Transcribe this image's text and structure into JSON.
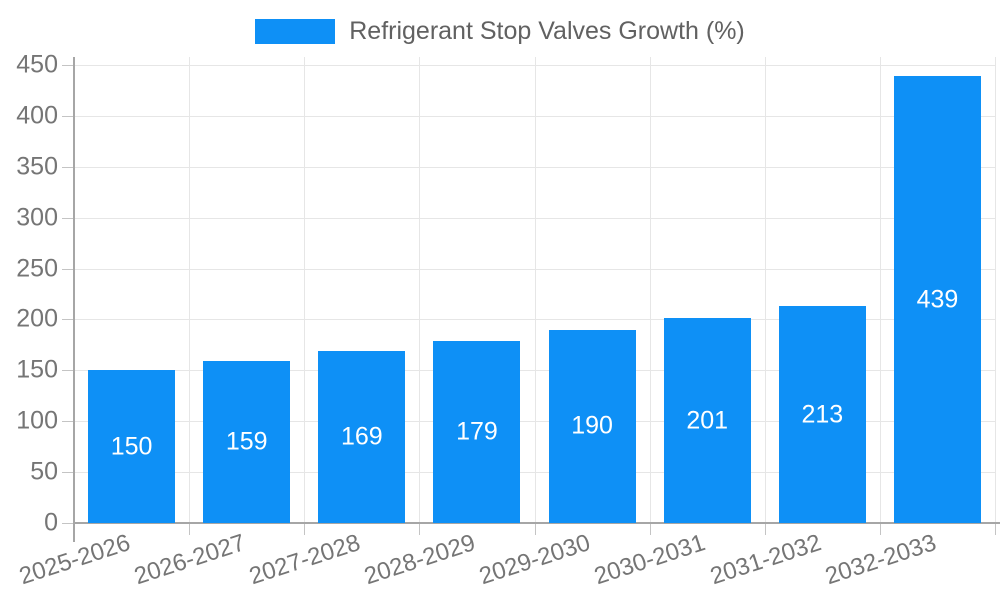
{
  "chart_data": {
    "type": "bar",
    "title": "Refrigerant Stop Valves Growth (%)",
    "categories": [
      "2025-2026",
      "2026-2027",
      "2027-2028",
      "2028-2029",
      "2029-2030",
      "2030-2031",
      "2031-2032",
      "2032-2033"
    ],
    "values": [
      150,
      159,
      169,
      179,
      190,
      201,
      213,
      439
    ],
    "series": [
      {
        "name": "Refrigerant Stop Valves Growth (%)",
        "values": [
          150,
          159,
          169,
          179,
          190,
          201,
          213,
          439
        ]
      }
    ],
    "xlabel": "",
    "ylabel": "",
    "ylim": [
      0,
      450
    ],
    "ytick_step": 50,
    "yticks": [
      0,
      50,
      100,
      150,
      200,
      250,
      300,
      350,
      400,
      450
    ],
    "grid": true,
    "legend_position": "top",
    "x_label_rotation_deg": -18,
    "bar_color": "#0E90F6",
    "value_label_color": "#FFFFFF"
  },
  "legend": {
    "items": [
      {
        "label": "Refrigerant Stop Valves Growth (%)",
        "color": "#0E90F6"
      }
    ]
  },
  "colors": {
    "background": "#FFFFFF",
    "bar": "#0E90F6",
    "grid": "#E6E6E6",
    "axis": "#A6A6A6",
    "tick": "#C4C4C4",
    "axis_label": "#757575",
    "legend_text": "#616161",
    "bar_value_text": "#FFFFFF"
  }
}
